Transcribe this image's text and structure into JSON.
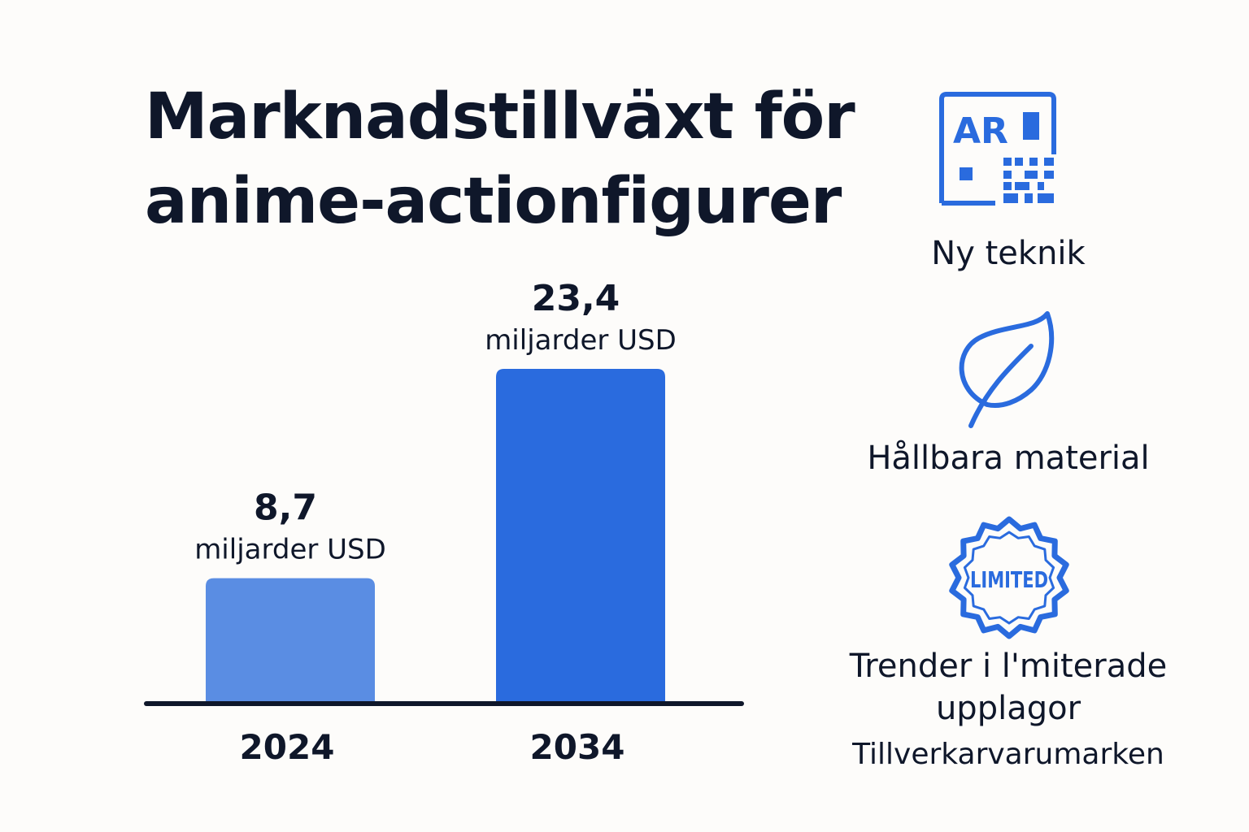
{
  "title": {
    "line1": "Marknadstillväxt för",
    "line2": "anime-actionfigurer"
  },
  "chart_data": {
    "type": "bar",
    "categories": [
      "2024",
      "2034"
    ],
    "values": [
      8.7,
      23.4
    ],
    "value_labels": [
      "8,7",
      "23,4"
    ],
    "unit_label": "miljarder USD",
    "colors": [
      "#5a8de3",
      "#2a6bde"
    ],
    "grid": false,
    "legend": "none"
  },
  "sidebar": {
    "items": [
      {
        "icon": "ar-qr-icon",
        "icon_text": "AR",
        "label": "Ny teknik"
      },
      {
        "icon": "leaf-icon",
        "label": "Hållbara material"
      },
      {
        "icon": "limited-badge-icon",
        "icon_text": "LIMITED",
        "label": "Trender i l'miterade upplagor",
        "sublabel": "Tillverkarvarumarken"
      }
    ]
  },
  "colors": {
    "accent": "#2a6bde",
    "text": "#0f172a",
    "background": "#fdfcfa"
  }
}
